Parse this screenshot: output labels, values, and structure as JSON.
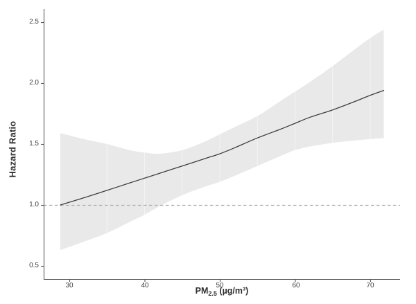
{
  "chart_data": {
    "type": "line",
    "title": "",
    "ylabel": "Hazard Ratio",
    "xlabel": "PM2.5 (µg/m³)",
    "xlabel_parts": {
      "prefix": "PM",
      "subscript": "2.5",
      "suffix": " (µg/m³)"
    },
    "x_ticks": {
      "values": [
        30,
        40,
        50,
        60,
        70
      ],
      "labels": [
        "30",
        "40",
        "50",
        "60",
        "70"
      ]
    },
    "y_ticks": {
      "values": [
        0.5,
        1.0,
        1.5,
        2.0,
        2.5
      ],
      "labels": [
        "0.5",
        "1.0",
        "1.5",
        "2.0",
        "2.5"
      ]
    },
    "xlim": [
      26.6,
      74.0
    ],
    "ylim": [
      0.39,
      2.6
    ],
    "grid": "off",
    "legend": "none",
    "reference_line": {
      "y": 1.0,
      "style": "dashed"
    },
    "x": [
      28.8,
      32,
      35,
      38,
      40,
      42,
      45,
      48,
      50,
      52,
      55,
      58,
      60,
      62,
      65,
      68,
      70,
      71.8
    ],
    "series": [
      {
        "name": "hazard_ratio",
        "values": [
          1.0,
          1.06,
          1.12,
          1.18,
          1.22,
          1.26,
          1.32,
          1.38,
          1.42,
          1.47,
          1.55,
          1.62,
          1.67,
          1.72,
          1.78,
          1.85,
          1.9,
          1.94
        ]
      },
      {
        "name": "ci_lower",
        "values": [
          0.63,
          0.7,
          0.77,
          0.86,
          0.92,
          0.99,
          1.08,
          1.15,
          1.19,
          1.24,
          1.32,
          1.4,
          1.45,
          1.48,
          1.51,
          1.53,
          1.54,
          1.55
        ]
      },
      {
        "name": "ci_upper",
        "values": [
          1.59,
          1.54,
          1.5,
          1.45,
          1.43,
          1.42,
          1.45,
          1.52,
          1.58,
          1.64,
          1.73,
          1.85,
          1.93,
          2.01,
          2.14,
          2.28,
          2.37,
          2.44
        ]
      }
    ],
    "minor_gridlines_x": [
      35,
      40,
      45,
      50,
      55,
      60,
      65,
      70
    ],
    "colors": {
      "curve": "#3d3d3d",
      "ci_band": "#e9e9e9",
      "reference_line": "#adadad",
      "axis": "#5a5a5a",
      "tick_text": "#3d3d3d",
      "title_text": "#2f2f2f",
      "background": "#ffffff",
      "gridline": "#ffffff"
    }
  }
}
